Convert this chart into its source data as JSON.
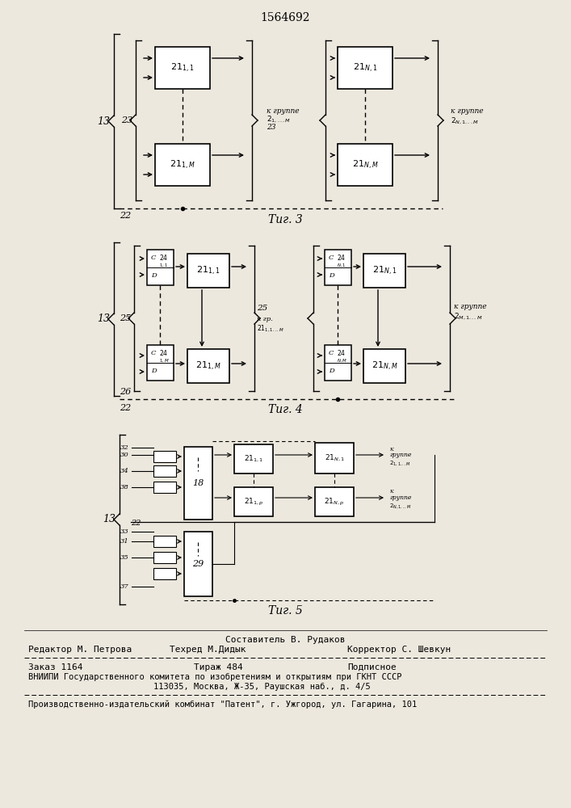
{
  "bg_color": "#ede8de",
  "title": "1564692",
  "fig3_caption": "Τиг. 3",
  "fig4_caption": "Τиг. 4",
  "fig5_caption": "Τиг. 5",
  "footer": {
    "line1_center": "Составитель В. Рудаков",
    "line2_left": "Редактор М. Петрова",
    "line2_mid": "Техред М.Дидык",
    "line2_right": "Корректор С. Шевкун",
    "line3_left": "Заказ 1164",
    "line3_mid": "Тираж 484",
    "line3_right": "Подписное",
    "line4": "ВНИИПИ Государственного комитета по изобретениям и открытиям при ГКНТ СССР",
    "line5": "113035, Москва, Ж-35, Раушская наб., д. 4/5",
    "line6": "Производственно-издательский комбинат \"Патент\", г. Ужгород, ул. Гагарина, 101"
  }
}
